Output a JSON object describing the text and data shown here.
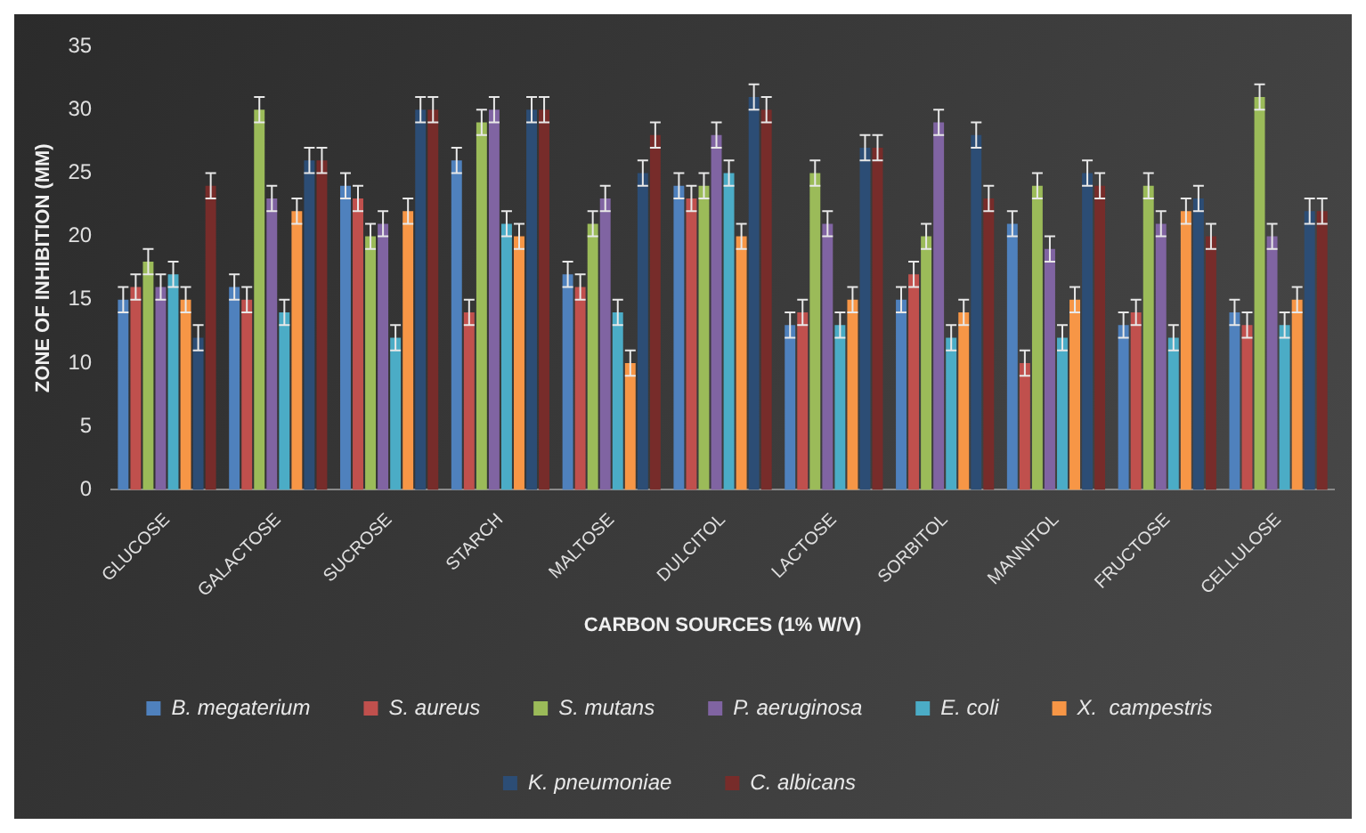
{
  "chart_data": {
    "type": "bar",
    "xlabel": "CARBON SOURCES (1% W/V)",
    "ylabel": "ZONE OF INHIBITION (MM)",
    "categories": [
      "GLUCOSE",
      "GALACTOSE",
      "SUCROSE",
      "STARCH",
      "MALTOSE",
      "DULCITOL",
      "LACTOSE",
      "SORBITOL",
      "MANNITOL",
      "FRUCTOSE",
      "CELLULOSE"
    ],
    "series": [
      {
        "name": "B. megaterium",
        "color": "#4f81bd",
        "values": [
          15,
          16,
          24,
          26,
          17,
          24,
          13,
          15,
          21,
          13,
          14
        ],
        "errors": [
          1,
          1,
          1,
          1,
          1,
          1,
          1,
          1,
          1,
          1,
          1
        ]
      },
      {
        "name": "S. aureus",
        "color": "#c0504d",
        "values": [
          16,
          15,
          23,
          14,
          16,
          23,
          14,
          17,
          10,
          14,
          13
        ],
        "errors": [
          1,
          1,
          1,
          1,
          1,
          1,
          1,
          1,
          1,
          1,
          1
        ]
      },
      {
        "name": "S. mutans",
        "color": "#9bbb59",
        "values": [
          18,
          30,
          20,
          29,
          21,
          24,
          25,
          20,
          24,
          24,
          31
        ],
        "errors": [
          1,
          1,
          1,
          1,
          1,
          1,
          1,
          1,
          1,
          1,
          1
        ]
      },
      {
        "name": "P. aeruginosa",
        "color": "#8064a2",
        "values": [
          16,
          23,
          21,
          30,
          23,
          28,
          21,
          29,
          19,
          21,
          20
        ],
        "errors": [
          1,
          1,
          1,
          1,
          1,
          1,
          1,
          1,
          1,
          1,
          1
        ]
      },
      {
        "name": "E. coli",
        "color": "#4bacc6",
        "values": [
          17,
          14,
          12,
          21,
          14,
          25,
          13,
          12,
          12,
          12,
          13
        ],
        "errors": [
          1,
          1,
          1,
          1,
          1,
          1,
          1,
          1,
          1,
          1,
          1
        ]
      },
      {
        "name": "X.  campestris",
        "color": "#f79646",
        "values": [
          15,
          22,
          22,
          20,
          10,
          20,
          15,
          14,
          15,
          22,
          15
        ],
        "errors": [
          1,
          1,
          1,
          1,
          1,
          1,
          1,
          1,
          1,
          1,
          1
        ]
      },
      {
        "name": "K. pneumoniae",
        "color": "#2c4d75",
        "values": [
          12,
          26,
          30,
          30,
          25,
          31,
          27,
          28,
          25,
          23,
          22
        ],
        "errors": [
          1,
          1,
          1,
          1,
          1,
          1,
          1,
          1,
          1,
          1,
          1
        ]
      },
      {
        "name": "C. albicans",
        "color": "#772c2a",
        "values": [
          24,
          26,
          30,
          30,
          28,
          30,
          27,
          23,
          24,
          20,
          22
        ],
        "errors": [
          1,
          1,
          1,
          1,
          1,
          1,
          1,
          1,
          1,
          1,
          1
        ]
      }
    ],
    "ylim": [
      0,
      35
    ],
    "yticks": [
      0,
      5,
      10,
      15,
      20,
      25,
      30,
      35
    ],
    "grid": false,
    "legend": "bottom"
  }
}
